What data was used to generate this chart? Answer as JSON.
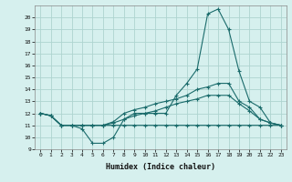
{
  "xlabel": "Humidex (Indice chaleur)",
  "background_color": "#d6f0ee",
  "grid_color": "#aed4d0",
  "line_color": "#1a6b6b",
  "xlim": [
    -0.5,
    23.5
  ],
  "ylim": [
    9,
    21
  ],
  "yticks": [
    9,
    10,
    11,
    12,
    13,
    14,
    15,
    16,
    17,
    18,
    19,
    20
  ],
  "xticks": [
    0,
    1,
    2,
    3,
    4,
    5,
    6,
    7,
    8,
    9,
    10,
    11,
    12,
    13,
    14,
    15,
    16,
    17,
    18,
    19,
    20,
    21,
    22,
    23
  ],
  "series": [
    {
      "x": [
        0,
        1,
        2,
        3,
        4,
        5,
        6,
        7,
        8,
        9,
        10,
        11,
        12,
        13,
        14,
        15,
        16,
        17,
        18,
        19,
        20,
        21,
        22,
        23
      ],
      "y": [
        12,
        11.8,
        11,
        11,
        10.7,
        9.5,
        9.5,
        10,
        11.5,
        12,
        12,
        12,
        12,
        13.5,
        14.5,
        15.7,
        20.3,
        20.7,
        19,
        15.5,
        13,
        12.5,
        11.2,
        11
      ]
    },
    {
      "x": [
        0,
        1,
        2,
        3,
        4,
        5,
        6,
        7,
        8,
        9,
        10,
        11,
        12,
        13,
        14,
        15,
        16,
        17,
        18,
        19,
        20,
        21,
        22,
        23
      ],
      "y": [
        12,
        11.8,
        11,
        11,
        11,
        11,
        11,
        11,
        11,
        11,
        11,
        11,
        11,
        11,
        11,
        11,
        11,
        11,
        11,
        11,
        11,
        11,
        11,
        11
      ]
    },
    {
      "x": [
        0,
        1,
        2,
        3,
        4,
        5,
        6,
        7,
        8,
        9,
        10,
        11,
        12,
        13,
        14,
        15,
        16,
        17,
        18,
        19,
        20,
        21,
        22,
        23
      ],
      "y": [
        12,
        11.8,
        11,
        11,
        11,
        11,
        11,
        11.3,
        12,
        12.3,
        12.5,
        12.8,
        13,
        13.2,
        13.5,
        14,
        14.2,
        14.5,
        14.5,
        13,
        12.5,
        11.5,
        11.2,
        11
      ]
    },
    {
      "x": [
        0,
        1,
        2,
        3,
        4,
        5,
        6,
        7,
        8,
        9,
        10,
        11,
        12,
        13,
        14,
        15,
        16,
        17,
        18,
        19,
        20,
        21,
        22,
        23
      ],
      "y": [
        12,
        11.8,
        11,
        11,
        11,
        11,
        11,
        11.2,
        11.5,
        11.8,
        12,
        12.2,
        12.5,
        12.8,
        13,
        13.2,
        13.5,
        13.5,
        13.5,
        12.8,
        12.2,
        11.5,
        11.2,
        11
      ]
    }
  ]
}
